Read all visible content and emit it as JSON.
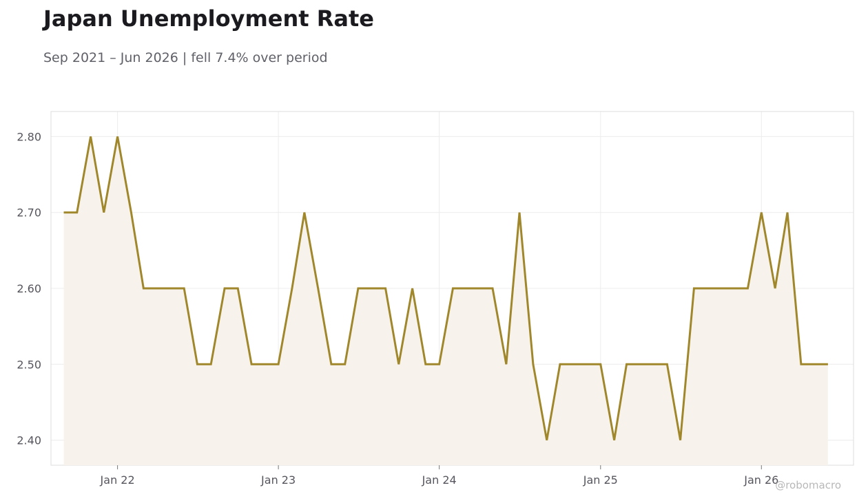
{
  "header": {
    "title": "Japan Unemployment Rate",
    "subtitle": "Sep 2021 – Jun 2026 | fell 7.4% over period"
  },
  "watermark": "@robomacro",
  "colors": {
    "line": "#a0872c",
    "fill": "#f7f3ec",
    "grid": "#ececec",
    "frame": "#dddddd"
  },
  "chart_data": {
    "type": "area",
    "title": "Japan Unemployment Rate",
    "subtitle": "Sep 2021 – Jun 2026 | fell 7.4% over period",
    "xlabel": "",
    "ylabel": "",
    "grid": true,
    "ylim": [
      2.367,
      2.833
    ],
    "xlim": [
      "2021-08-03",
      "2026-07-29"
    ],
    "x_ticks": [
      {
        "date": "2022-01-01",
        "label": "Jan 22"
      },
      {
        "date": "2023-01-01",
        "label": "Jan 23"
      },
      {
        "date": "2024-01-01",
        "label": "Jan 24"
      },
      {
        "date": "2025-01-01",
        "label": "Jan 25"
      },
      {
        "date": "2026-01-01",
        "label": "Jan 26"
      }
    ],
    "y_ticks": [
      {
        "value": 2.4,
        "label": "2.40"
      },
      {
        "value": 2.5,
        "label": "2.50"
      },
      {
        "value": 2.6,
        "label": "2.60"
      },
      {
        "value": 2.7,
        "label": "2.70"
      },
      {
        "value": 2.8,
        "label": "2.80"
      }
    ],
    "x": [
      "2021-09",
      "2021-10",
      "2021-11",
      "2021-12",
      "2022-01",
      "2022-02",
      "2022-03",
      "2022-04",
      "2022-05",
      "2022-06",
      "2022-07",
      "2022-08",
      "2022-09",
      "2022-10",
      "2022-11",
      "2022-12",
      "2023-01",
      "2023-02",
      "2023-03",
      "2023-04",
      "2023-05",
      "2023-06",
      "2023-07",
      "2023-08",
      "2023-09",
      "2023-10",
      "2023-11",
      "2023-12",
      "2024-01",
      "2024-02",
      "2024-03",
      "2024-04",
      "2024-05",
      "2024-06",
      "2024-07",
      "2024-08",
      "2024-09",
      "2024-10",
      "2024-11",
      "2024-12",
      "2025-01",
      "2025-02",
      "2025-03",
      "2025-04",
      "2025-05",
      "2025-06",
      "2025-07",
      "2025-08",
      "2025-09",
      "2025-10",
      "2025-11",
      "2025-12",
      "2026-01",
      "2026-02",
      "2026-03",
      "2026-04",
      "2026-05",
      "2026-06"
    ],
    "series": [
      {
        "values": [
          2.7,
          2.7,
          2.8,
          2.7,
          2.8,
          2.7,
          2.6,
          2.6,
          2.6,
          2.6,
          2.5,
          2.5,
          2.6,
          2.6,
          2.5,
          2.5,
          2.5,
          2.6,
          2.7,
          2.6,
          2.5,
          2.5,
          2.6,
          2.6,
          2.6,
          2.5,
          2.6,
          2.5,
          2.5,
          2.6,
          2.6,
          2.6,
          2.6,
          2.5,
          2.7,
          2.5,
          2.4,
          2.5,
          2.5,
          2.5,
          2.5,
          2.4,
          2.5,
          2.5,
          2.5,
          2.5,
          2.4,
          2.6,
          2.6,
          2.6,
          2.6,
          2.6,
          2.7,
          2.6,
          2.7,
          2.5,
          2.5,
          2.5
        ]
      }
    ]
  }
}
